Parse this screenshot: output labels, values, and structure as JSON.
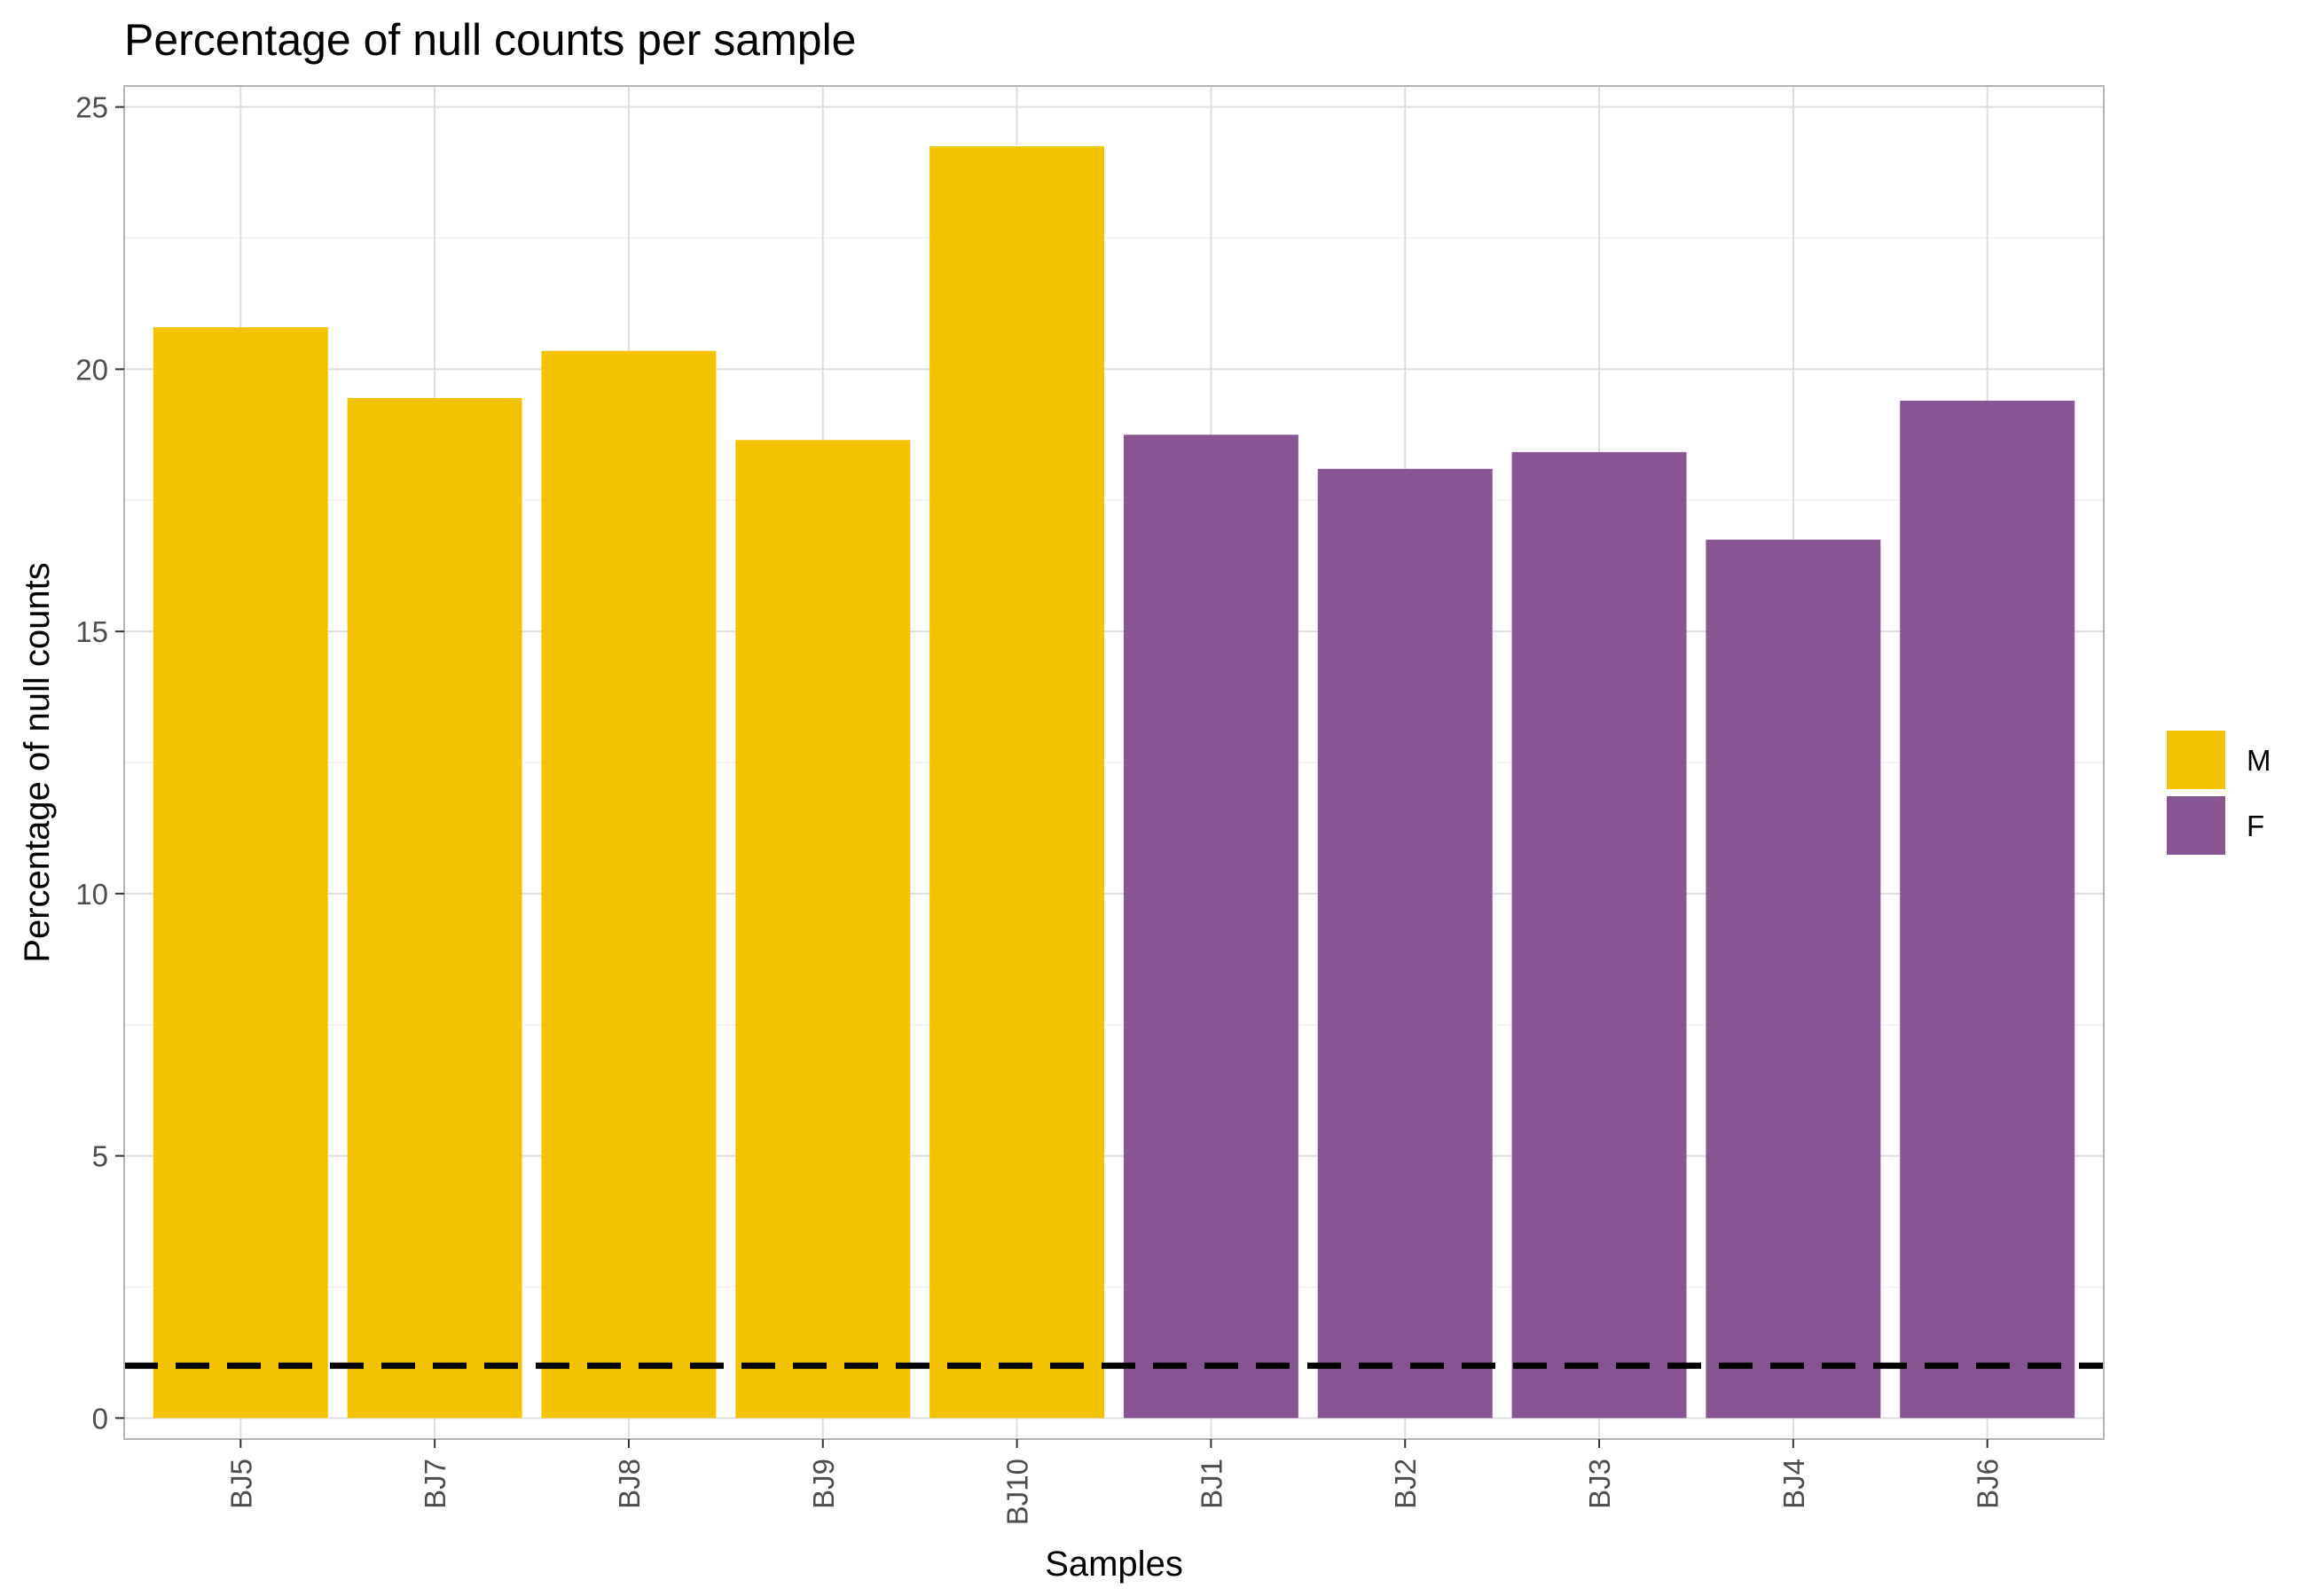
{
  "chart_data": {
    "type": "bar",
    "title": "Percentage of null counts per sample",
    "xlabel": "Samples",
    "ylabel": "Percentage of null counts",
    "categories": [
      "BJ5",
      "BJ7",
      "BJ8",
      "BJ9",
      "BJ10",
      "BJ1",
      "BJ2",
      "BJ3",
      "BJ4",
      "BJ6"
    ],
    "values": [
      20.8,
      19.45,
      20.35,
      18.65,
      24.25,
      18.75,
      18.1,
      18.42,
      16.75,
      19.4
    ],
    "groups": [
      "M",
      "M",
      "M",
      "M",
      "M",
      "F",
      "F",
      "F",
      "F",
      "F"
    ],
    "ylim": [
      -0.4,
      25.4
    ],
    "yticks": [
      0,
      5,
      10,
      15,
      20,
      25
    ],
    "reference_line": {
      "y": 1,
      "style": "dashed",
      "color": "#000000"
    },
    "legend": {
      "position": "right",
      "entries": [
        {
          "label": "M",
          "color": "#F3C300"
        },
        {
          "label": "F",
          "color": "#875692"
        }
      ]
    },
    "grid": true,
    "x_tick_rotation": -90
  }
}
